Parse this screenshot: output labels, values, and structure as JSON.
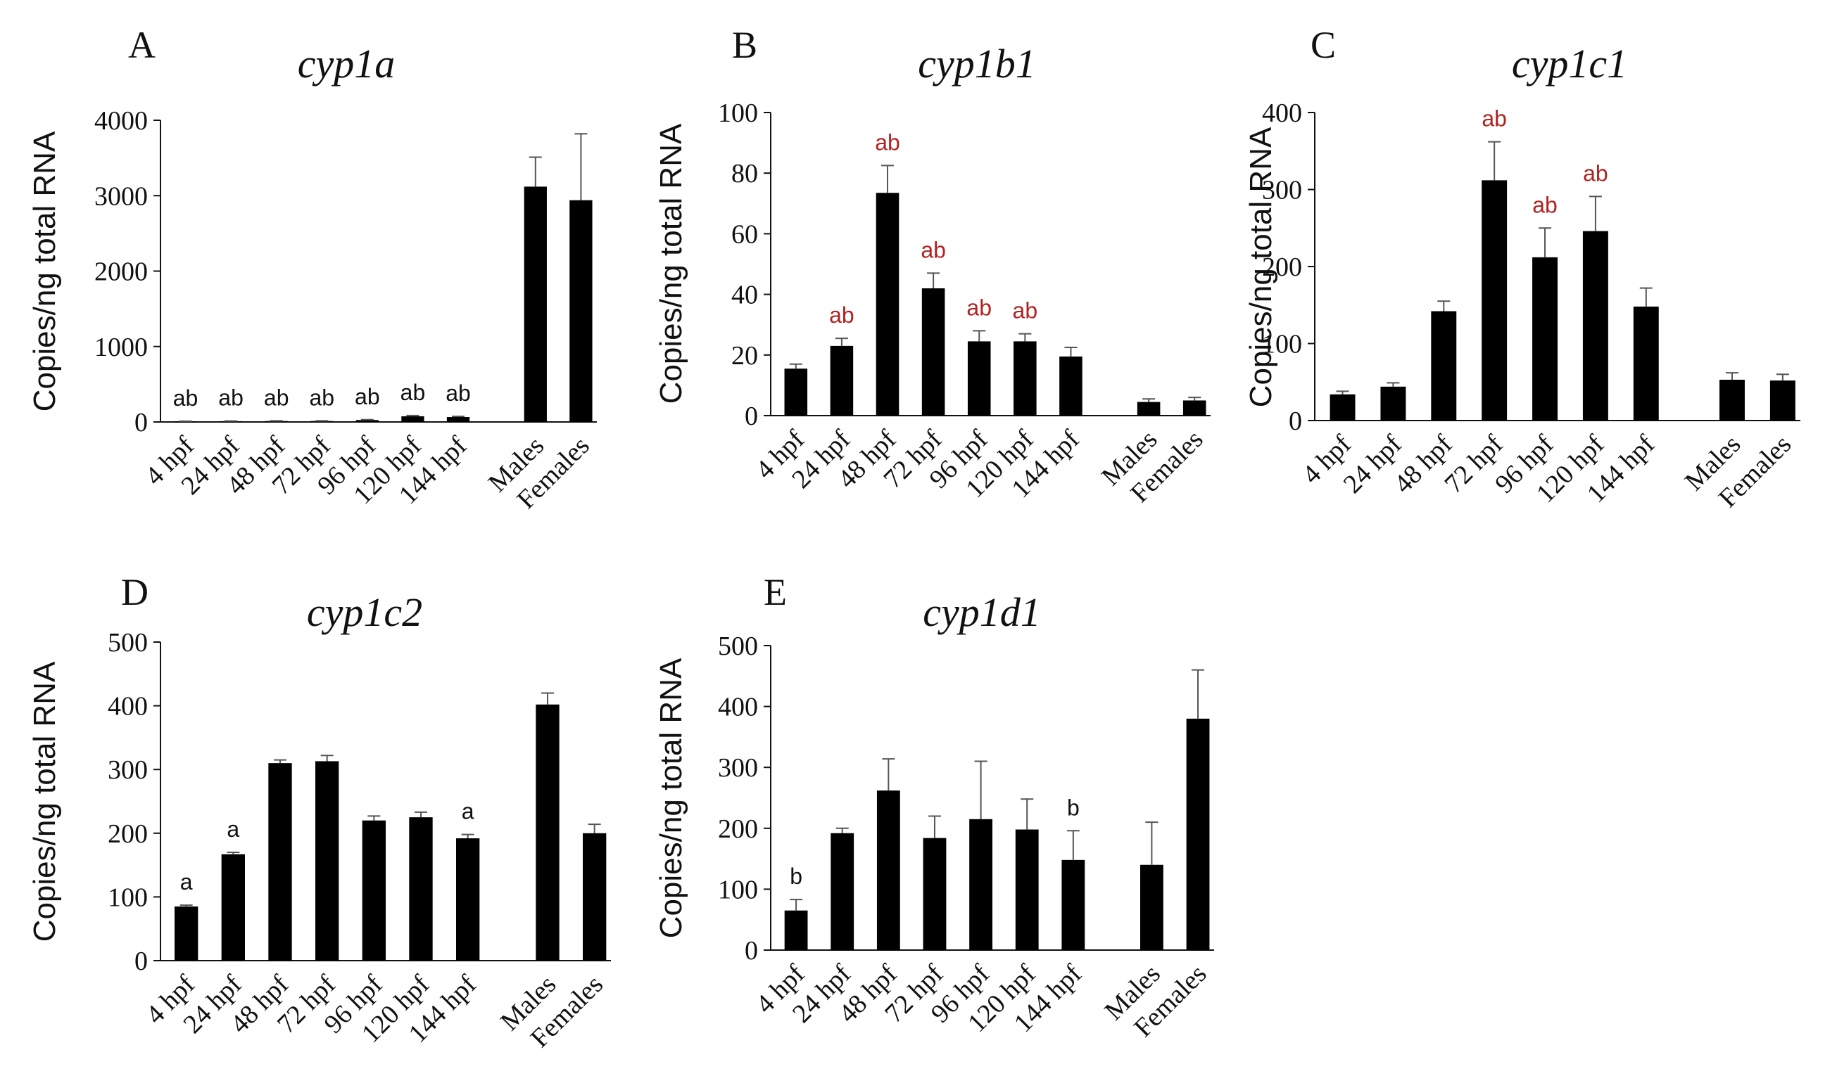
{
  "chart_data": [
    {
      "type": "bar",
      "panel": "A",
      "title": "cyp1a",
      "ylabel": "Copies/ng total RNA",
      "ylim": [
        0,
        4000
      ],
      "yticks": [
        0,
        1000,
        2000,
        3000,
        4000
      ],
      "categories": [
        "4 hpf",
        "24 hpf",
        "48 hpf",
        "72 hpf",
        "96 hpf",
        "120 hpf",
        "144 hpf",
        "Males",
        "Females"
      ],
      "values": [
        8,
        10,
        12,
        12,
        25,
        75,
        65,
        3120,
        2940
      ],
      "errors": [
        3,
        3,
        3,
        3,
        5,
        10,
        10,
        390,
        880
      ],
      "annotations": [
        "ab",
        "ab",
        "ab",
        "ab",
        "ab",
        "ab",
        "ab",
        "",
        ""
      ],
      "annotation_color": "#111111"
    },
    {
      "type": "bar",
      "panel": "B",
      "title": "cyp1b1",
      "ylabel": "Copies/ng total RNA",
      "ylim": [
        0,
        100
      ],
      "yticks": [
        0,
        20,
        40,
        60,
        80,
        100
      ],
      "categories": [
        "4 hpf",
        "24 hpf",
        "48 hpf",
        "72 hpf",
        "96 hpf",
        "120 hpf",
        "144 hpf",
        "Males",
        "Females"
      ],
      "values": [
        15.5,
        23,
        73.5,
        42,
        24.5,
        24.5,
        19.5,
        4.5,
        5
      ],
      "errors": [
        1.5,
        2.5,
        9,
        5,
        3.5,
        2.5,
        3,
        1,
        1
      ],
      "annotations": [
        "",
        "ab",
        "ab",
        "ab",
        "ab",
        "ab",
        "",
        "",
        ""
      ],
      "annotation_color": "#b22222"
    },
    {
      "type": "bar",
      "panel": "C",
      "title": "cyp1c1",
      "ylabel": "Copies/ng total RNA",
      "ylim": [
        0,
        400
      ],
      "yticks": [
        0,
        100,
        200,
        300,
        400
      ],
      "categories": [
        "4 hpf",
        "24 hpf",
        "48 hpf",
        "72 hpf",
        "96 hpf",
        "120 hpf",
        "144 hpf",
        "Males",
        "Females"
      ],
      "values": [
        34,
        44,
        142,
        312,
        212,
        246,
        148,
        53,
        52
      ],
      "errors": [
        4,
        5,
        13,
        50,
        38,
        45,
        24,
        9,
        8
      ],
      "annotations": [
        "",
        "",
        "",
        "ab",
        "ab",
        "ab",
        "",
        "",
        ""
      ],
      "annotation_color": "#b22222"
    },
    {
      "type": "bar",
      "panel": "D",
      "title": "cyp1c2",
      "ylabel": "Copies/ng total RNA",
      "ylim": [
        0,
        500
      ],
      "yticks": [
        0,
        100,
        200,
        300,
        400,
        500
      ],
      "categories": [
        "4 hpf",
        "24 hpf",
        "48 hpf",
        "72 hpf",
        "96 hpf",
        "120 hpf",
        "144 hpf",
        "Males",
        "Females"
      ],
      "values": [
        85,
        167,
        310,
        313,
        220,
        225,
        192,
        402,
        200
      ],
      "errors": [
        2,
        3,
        5,
        9,
        7,
        8,
        6,
        18,
        14
      ],
      "annotations": [
        "a",
        "a",
        "",
        "",
        "",
        "",
        "a",
        "",
        ""
      ],
      "annotation_color": "#111111"
    },
    {
      "type": "bar",
      "panel": "E",
      "title": "cyp1d1",
      "ylabel": "Copies/ng total RNA",
      "ylim": [
        0,
        500
      ],
      "yticks": [
        0,
        100,
        200,
        300,
        400,
        500
      ],
      "categories": [
        "4 hpf",
        "24 hpf",
        "48 hpf",
        "72 hpf",
        "96 hpf",
        "120 hpf",
        "144 hpf",
        "Males",
        "Females"
      ],
      "values": [
        65,
        192,
        262,
        184,
        215,
        198,
        148,
        140,
        380
      ],
      "errors": [
        18,
        8,
        52,
        36,
        95,
        50,
        48,
        70,
        80
      ],
      "annotations": [
        "b",
        "",
        "",
        "",
        "",
        "",
        "b",
        "",
        ""
      ],
      "annotation_color": "#111111"
    }
  ]
}
